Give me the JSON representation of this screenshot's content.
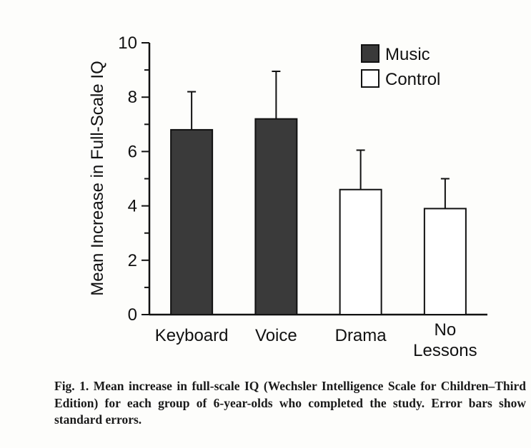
{
  "chart_data": {
    "type": "bar",
    "ylabel": "Mean Increase in Full-Scale IQ",
    "ylim": [
      0,
      10
    ],
    "yticks": [
      "0",
      "2",
      "4",
      "6",
      "8",
      "10"
    ],
    "categories": [
      {
        "lines": [
          "Keyboard"
        ]
      },
      {
        "lines": [
          "Voice"
        ]
      },
      {
        "lines": [
          "Drama"
        ]
      },
      {
        "lines": [
          "No",
          "Lessons"
        ]
      }
    ],
    "series": [
      {
        "name": "Music",
        "color": "#3a3a3a",
        "values": [
          6.8,
          7.2,
          null,
          null
        ],
        "errors": [
          1.4,
          1.75,
          null,
          null
        ]
      },
      {
        "name": "Control",
        "color": "#ffffff",
        "values": [
          null,
          null,
          4.6,
          3.9
        ],
        "errors": [
          null,
          null,
          1.45,
          1.1
        ]
      }
    ],
    "legend_position": "top-right",
    "grid": false
  },
  "caption": {
    "label": "Fig. 1.",
    "text": "Mean increase in full-scale IQ (Wechsler Intelligence Scale for Children–Third Edition) for each group of 6-year-olds who completed the study. Error bars show standard errors."
  }
}
